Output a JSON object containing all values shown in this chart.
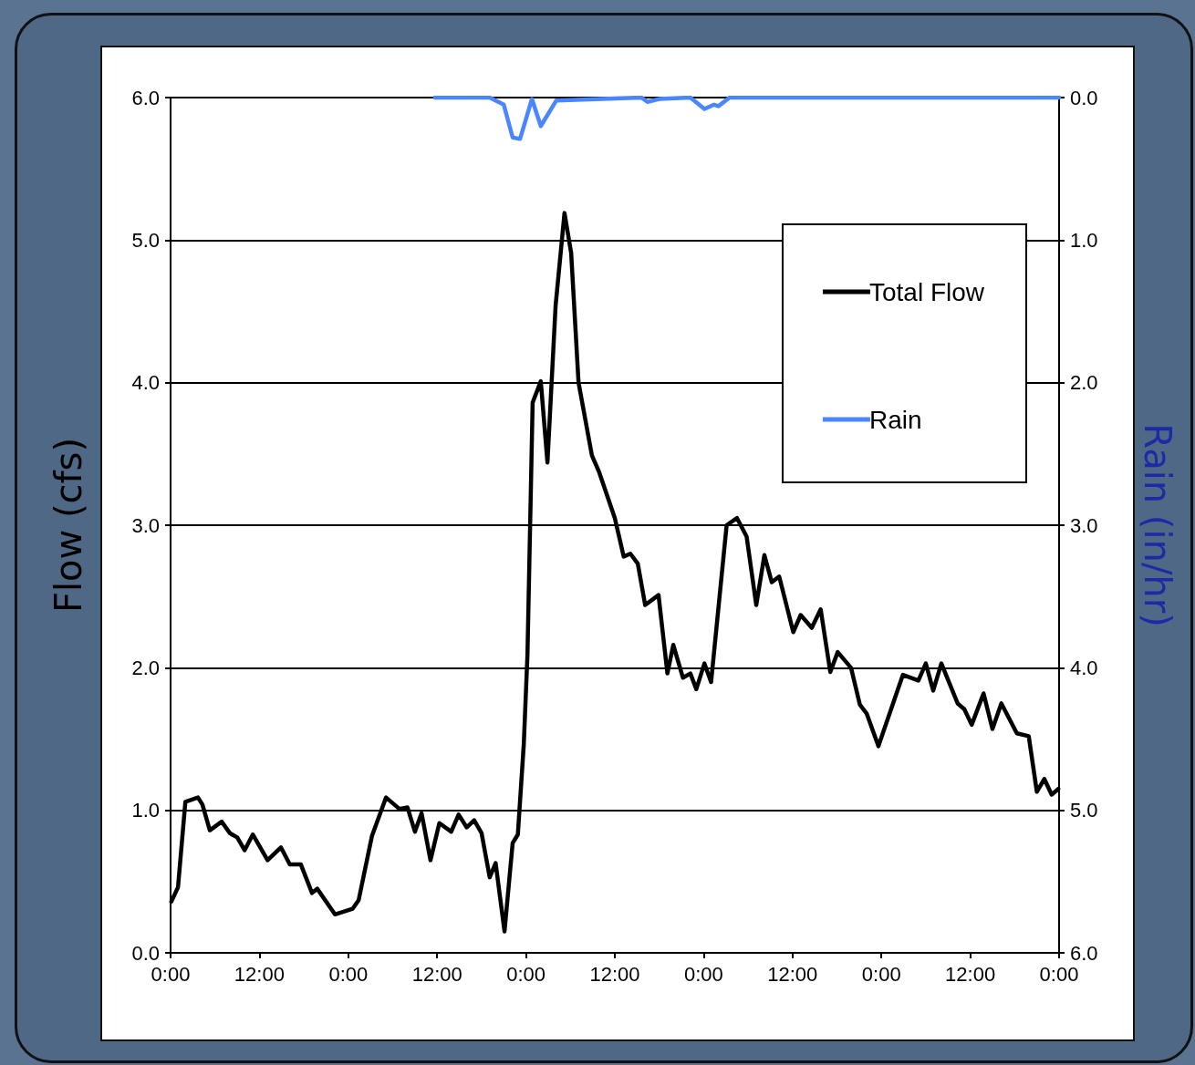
{
  "chart_data": {
    "type": "line",
    "ylabel": "Flow (cfs)",
    "y2label": "Rain (in/hr)",
    "xlim": [
      "--01-01T00:00",
      "--01-06T00:00"
    ],
    "xticks": [
      {
        "value": "--01-01T00:00",
        "label": "0:00"
      },
      {
        "value": "--01-01T12:00",
        "label": "12:00"
      },
      {
        "value": "--01-02T00:00",
        "label": "0:00"
      },
      {
        "value": "--01-02T12:00",
        "label": "12:00"
      },
      {
        "value": "--01-03T00:00",
        "label": "0:00"
      },
      {
        "value": "--01-03T12:00",
        "label": "12:00"
      },
      {
        "value": "--01-04T00:00",
        "label": "0:00"
      },
      {
        "value": "--01-04T12:00",
        "label": "12:00"
      },
      {
        "value": "--01-05T00:00",
        "label": "0:00"
      },
      {
        "value": "--01-05T12:00",
        "label": "12:00"
      },
      {
        "value": "--01-06T00:00",
        "label": "0:00"
      }
    ],
    "ylim": [
      0,
      6
    ],
    "yticks": [
      {
        "value": 0,
        "label": "0.0"
      },
      {
        "value": 1,
        "label": "1.0"
      },
      {
        "value": 2,
        "label": "2.0"
      },
      {
        "value": 3,
        "label": "3.0"
      },
      {
        "value": 4,
        "label": "4.0"
      },
      {
        "value": 5,
        "label": "5.0"
      },
      {
        "value": 6,
        "label": "6.0"
      }
    ],
    "y2lim": [
      6,
      0
    ],
    "y2ticks": [
      {
        "value": 0,
        "label": "0.0"
      },
      {
        "value": 1,
        "label": "1.0"
      },
      {
        "value": 2,
        "label": "2.0"
      },
      {
        "value": 3,
        "label": "3.0"
      },
      {
        "value": 4,
        "label": "4.0"
      },
      {
        "value": 5,
        "label": "5.0"
      },
      {
        "value": 6,
        "label": "6.0"
      }
    ],
    "grid": "y",
    "legend": "top right",
    "marker": "none",
    "line_style": "solid",
    "series": [
      {
        "name": "Total Flow",
        "color": "#000000",
        "x": [
          "--01-01T00:06",
          "--01-01T01:00",
          "--01-01T02:00",
          "--01-01T03:42",
          "--01-01T04:18",
          "--01-01T05:18",
          "--01-01T06:54",
          "--01-01T08:00",
          "--01-01T09:00",
          "--01-01T10:00",
          "--01-01T11:06",
          "--01-01T13:06",
          "--01-01T14:54",
          "--01-01T16:06",
          "--01-01T17:36",
          "--01-01T19:06",
          "--01-01T19:48",
          "--01-01T22:12",
          "--01-02T00:36",
          "--01-02T01:24",
          "--01-02T03:12",
          "--01-02T05:06",
          "--01-02T06:54",
          "--01-02T08:00",
          "--01-02T09:00",
          "--01-02T09:54",
          "--01-02T11:06",
          "--01-02T12:18",
          "--01-02T13:54",
          "--01-02T14:54",
          "--01-02T16:00",
          "--01-02T17:00",
          "--01-02T18:00",
          "--01-02T19:06",
          "--01-02T19:54",
          "--01-02T21:06",
          "--01-02T22:12",
          "--01-02T22:54",
          "--01-02T23:42",
          "--01-03T00:12",
          "--01-03T00:54",
          "--01-03T02:00",
          "--01-03T02:54",
          "--01-03T04:00",
          "--01-03T05:12",
          "--01-03T06:06",
          "--01-03T07:06",
          "--01-03T08:54",
          "--01-03T09:54",
          "--01-03T12:00",
          "--01-03T13:12",
          "--01-03T14:06",
          "--01-03T15:06",
          "--01-03T16:06",
          "--01-03T17:54",
          "--01-03T19:06",
          "--01-03T19:54",
          "--01-03T21:12",
          "--01-03T22:12",
          "--01-03T23:00",
          "--01-04T00:06",
          "--01-04T01:00",
          "--01-04T03:06",
          "--01-04T04:30",
          "--01-04T05:48",
          "--01-04T07:06",
          "--01-04T08:12",
          "--01-04T09:12",
          "--01-04T10:12",
          "--01-04T12:06",
          "--01-04T13:06",
          "--01-04T14:36",
          "--01-04T15:48",
          "--01-04T17:06",
          "--01-04T18:06",
          "--01-04T19:54",
          "--01-04T21:06",
          "--01-04T22:00",
          "--01-04T23:36",
          "--01-05T02:54",
          "--01-05T05:00",
          "--01-05T06:00",
          "--01-05T07:00",
          "--01-05T08:06",
          "--01-05T10:18",
          "--01-05T11:12",
          "--01-05T12:12",
          "--01-05T13:48",
          "--01-05T15:00",
          "--01-05T16:12",
          "--01-05T18:18",
          "--01-05T19:54",
          "--01-05T21:00",
          "--01-05T22:00",
          "--01-05T23:00",
          "--01-05T23:54"
        ],
        "values": [
          0.36,
          0.46,
          1.06,
          1.09,
          1.04,
          0.86,
          0.92,
          0.84,
          0.81,
          0.72,
          0.83,
          0.65,
          0.74,
          0.62,
          0.62,
          0.42,
          0.45,
          0.27,
          0.31,
          0.37,
          0.82,
          1.09,
          1.01,
          1.02,
          0.85,
          0.98,
          0.65,
          0.91,
          0.85,
          0.97,
          0.88,
          0.93,
          0.84,
          0.53,
          0.63,
          0.15,
          0.77,
          0.83,
          1.46,
          2.09,
          3.86,
          4.01,
          3.44,
          4.54,
          5.19,
          4.91,
          4.0,
          3.49,
          3.37,
          3.05,
          2.78,
          2.8,
          2.73,
          2.44,
          2.51,
          1.96,
          2.16,
          1.93,
          1.96,
          1.85,
          2.03,
          1.9,
          3.0,
          3.05,
          2.92,
          2.44,
          2.79,
          2.6,
          2.64,
          2.25,
          2.37,
          2.28,
          2.41,
          1.97,
          2.11,
          2.0,
          1.74,
          1.68,
          1.45,
          1.95,
          1.91,
          2.03,
          1.84,
          2.03,
          1.75,
          1.71,
          1.6,
          1.82,
          1.57,
          1.75,
          1.54,
          1.52,
          1.13,
          1.22,
          1.11,
          1.15
        ]
      },
      {
        "name": "Rain",
        "color": "#4a86ff",
        "axis": "y2",
        "x": [
          "--01-02T11:42",
          "--01-02T19:06",
          "--01-02T21:00",
          "--01-02T22:12",
          "--01-02T23:12",
          "--01-03T00:48",
          "--01-03T02:00",
          "--01-03T04:06",
          "--01-03T15:36",
          "--01-03T16:24",
          "--01-03T18:00",
          "--01-03T22:12",
          "--01-04T00:06",
          "--01-04T01:24",
          "--01-04T02:00",
          "--01-04T03:30",
          "--01-06T00:00"
        ],
        "values": [
          0,
          0,
          0.05,
          0.28,
          0.29,
          0.01,
          0.2,
          0.02,
          0,
          0.03,
          0.01,
          0,
          0.08,
          0.05,
          0.06,
          0,
          0
        ]
      }
    ]
  }
}
